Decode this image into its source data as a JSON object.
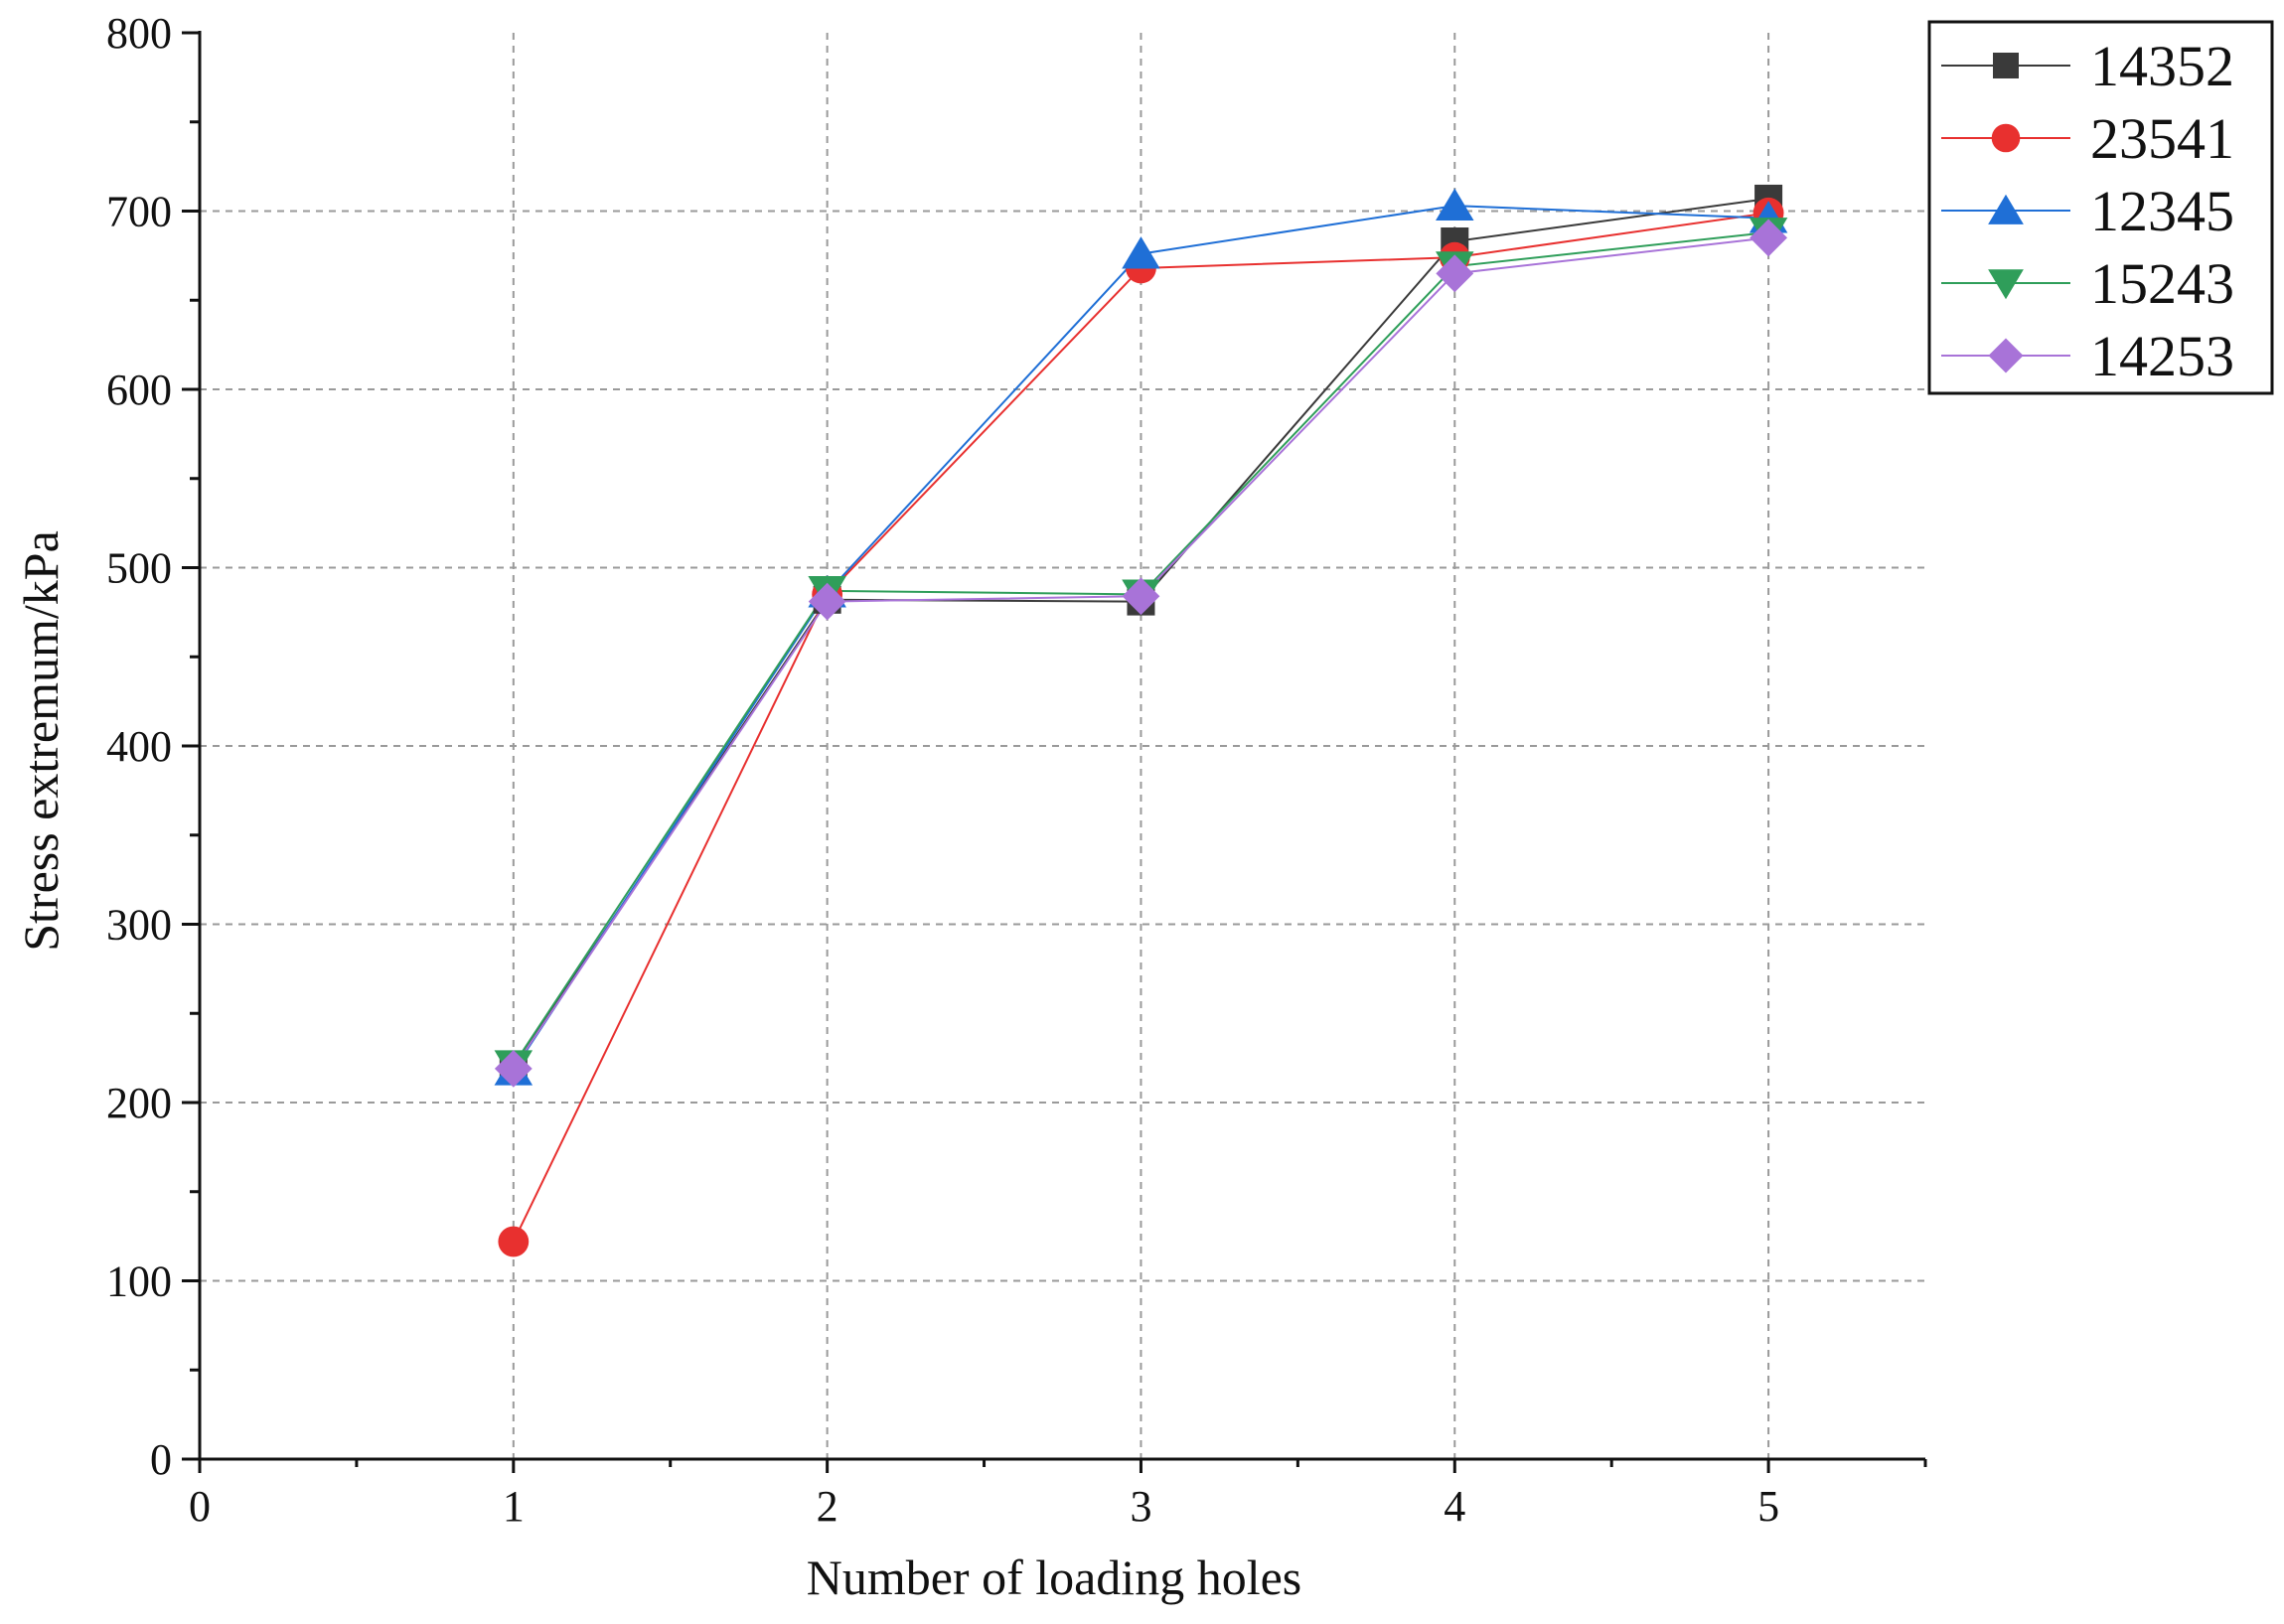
{
  "chart_data": {
    "type": "line",
    "xlabel": "Number of loading holes",
    "ylabel": "Stress extremum/kPa",
    "xlim": [
      0,
      5.5
    ],
    "ylim": [
      0,
      800
    ],
    "x_ticks": [
      0,
      1,
      2,
      3,
      4,
      5
    ],
    "y_ticks": [
      0,
      100,
      200,
      300,
      400,
      500,
      600,
      700,
      800
    ],
    "x_tick_labels": [
      "0",
      "1",
      "2",
      "3",
      "4",
      "5"
    ],
    "y_tick_labels": [
      "0",
      "100",
      "200",
      "300",
      "400",
      "500",
      "600",
      "700",
      "800"
    ],
    "grid": true,
    "legend_position": "top-right outside",
    "x": [
      1,
      2,
      3,
      4,
      5
    ],
    "series": [
      {
        "name": "14352",
        "values": [
          220,
          482,
          481,
          683,
          707
        ],
        "color": "#3a3a3a",
        "marker": "square"
      },
      {
        "name": "23541",
        "values": [
          122,
          485,
          668,
          674,
          699
        ],
        "color": "#e8302f",
        "marker": "circle"
      },
      {
        "name": "12345",
        "values": [
          218,
          486,
          676,
          703,
          696
        ],
        "color": "#1f6fd6",
        "marker": "triangle-up"
      },
      {
        "name": "15243",
        "values": [
          221,
          487,
          485,
          669,
          688
        ],
        "color": "#2f9e5a",
        "marker": "triangle-down"
      },
      {
        "name": "14253",
        "values": [
          219,
          481,
          484,
          665,
          685
        ],
        "color": "#a873d8",
        "marker": "diamond"
      }
    ]
  }
}
